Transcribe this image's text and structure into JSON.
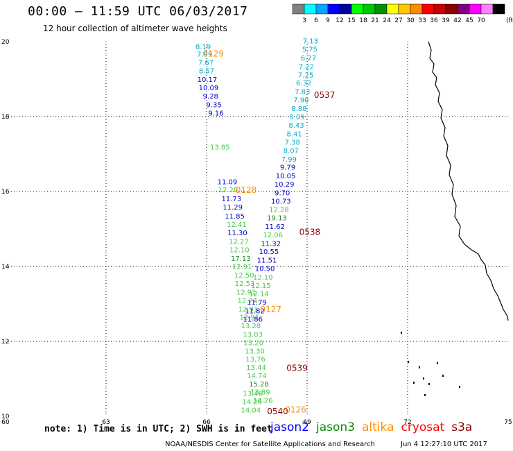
{
  "header": {
    "title": "00:00 – 11:59 UTC 06/03/2017",
    "subtitle": "12 hour collection of altimeter wave heights"
  },
  "colorbar": {
    "unit": "(ft)",
    "colors": [
      "#808080",
      "#00ffff",
      "#00a8ff",
      "#0000ff",
      "#00009c",
      "#00ff00",
      "#00c800",
      "#009000",
      "#ffff00",
      "#ffc800",
      "#ff8c00",
      "#ff0000",
      "#c80000",
      "#8b0000",
      "#800080",
      "#ff00ff",
      "#ff80ff",
      "#000000"
    ],
    "labels": [
      "3",
      "6",
      "9",
      "12",
      "15",
      "18",
      "21",
      "24",
      "27",
      "30",
      "33",
      "36",
      "39",
      "42",
      "45",
      "70"
    ]
  },
  "axes": {
    "lon_labels": [
      "60",
      "63",
      "66",
      "69",
      "72",
      "75"
    ],
    "lat_labels": [
      "20",
      "18",
      "16",
      "14",
      "12",
      "10"
    ]
  },
  "observations": [
    {
      "v": "8.19",
      "c": "#00aacc",
      "lon": 65.9,
      "lat": 19.8
    },
    {
      "v": "7.99",
      "c": "#00aacc",
      "lon": 65.94,
      "lat": 19.6
    },
    {
      "v": "7.67",
      "c": "#00aacc",
      "lon": 65.98,
      "lat": 19.38
    },
    {
      "v": "8.57",
      "c": "#00aacc",
      "lon": 66.0,
      "lat": 19.16
    },
    {
      "v": "10.17",
      "c": "#0000cc",
      "lon": 66.02,
      "lat": 18.93
    },
    {
      "v": "10.09",
      "c": "#0000cc",
      "lon": 66.06,
      "lat": 18.7
    },
    {
      "v": "9.28",
      "c": "#0000cc",
      "lon": 66.12,
      "lat": 18.48
    },
    {
      "v": "9.35",
      "c": "#0000cc",
      "lon": 66.22,
      "lat": 18.25
    },
    {
      "v": "9.16",
      "c": "#0000cc",
      "lon": 66.28,
      "lat": 18.03
    },
    {
      "v": "13.85",
      "c": "#44cc44",
      "lon": 66.4,
      "lat": 17.12
    },
    {
      "v": "11.09",
      "c": "#0000cc",
      "lon": 66.62,
      "lat": 16.19
    },
    {
      "v": "12.20",
      "c": "#44cc44",
      "lon": 66.64,
      "lat": 15.98
    },
    {
      "v": "11.73",
      "c": "#0000cc",
      "lon": 66.74,
      "lat": 15.74
    },
    {
      "v": "11.29",
      "c": "#0000cc",
      "lon": 66.78,
      "lat": 15.52
    },
    {
      "v": "11.85",
      "c": "#0000cc",
      "lon": 66.84,
      "lat": 15.28
    },
    {
      "v": "12.41",
      "c": "#44cc44",
      "lon": 66.9,
      "lat": 15.06
    },
    {
      "v": "11.30",
      "c": "#0000cc",
      "lon": 66.92,
      "lat": 14.83
    },
    {
      "v": "12.27",
      "c": "#44cc44",
      "lon": 66.96,
      "lat": 14.6
    },
    {
      "v": "12.10",
      "c": "#44cc44",
      "lon": 66.98,
      "lat": 14.38
    },
    {
      "v": "17.13",
      "c": "#228822",
      "lon": 67.02,
      "lat": 14.15
    },
    {
      "v": "12.91",
      "c": "#44cc44",
      "lon": 67.06,
      "lat": 13.93
    },
    {
      "v": "12.50",
      "c": "#44cc44",
      "lon": 67.12,
      "lat": 13.7
    },
    {
      "v": "12.53",
      "c": "#44cc44",
      "lon": 67.14,
      "lat": 13.48
    },
    {
      "v": "12.91",
      "c": "#44cc44",
      "lon": 67.18,
      "lat": 13.25
    },
    {
      "v": "12.74",
      "c": "#44cc44",
      "lon": 67.22,
      "lat": 13.03
    },
    {
      "v": "12.91",
      "c": "#44cc44",
      "lon": 67.24,
      "lat": 12.8
    },
    {
      "v": "12.91",
      "c": "#44cc44",
      "lon": 67.28,
      "lat": 12.58
    },
    {
      "v": "13.28",
      "c": "#44cc44",
      "lon": 67.32,
      "lat": 12.35
    },
    {
      "v": "13.03",
      "c": "#44cc44",
      "lon": 67.38,
      "lat": 12.12
    },
    {
      "v": "13.20",
      "c": "#44cc44",
      "lon": 67.4,
      "lat": 11.9
    },
    {
      "v": "13.30",
      "c": "#44cc44",
      "lon": 67.44,
      "lat": 11.68
    },
    {
      "v": "13.76",
      "c": "#44cc44",
      "lon": 67.46,
      "lat": 11.46
    },
    {
      "v": "13.44",
      "c": "#44cc44",
      "lon": 67.48,
      "lat": 11.24
    },
    {
      "v": "14.74",
      "c": "#44cc44",
      "lon": 67.5,
      "lat": 11.02
    },
    {
      "v": "15.28",
      "c": "#228822",
      "lon": 67.56,
      "lat": 10.8
    },
    {
      "v": "13.89",
      "c": "#44cc44",
      "lon": 67.6,
      "lat": 10.58
    },
    {
      "v": "13.46",
      "c": "#44cc44",
      "lon": 67.38,
      "lat": 10.55
    },
    {
      "v": "14.26",
      "c": "#44cc44",
      "lon": 67.68,
      "lat": 10.36
    },
    {
      "v": "14.26",
      "c": "#44cc44",
      "lon": 67.36,
      "lat": 10.32
    },
    {
      "v": "14.04",
      "c": "#44cc44",
      "lon": 67.32,
      "lat": 10.1
    },
    {
      "v": "7.13",
      "c": "#00aacc",
      "lon": 69.1,
      "lat": 19.95
    },
    {
      "v": "5.75",
      "c": "#00aacc",
      "lon": 69.08,
      "lat": 19.73
    },
    {
      "v": "6.27",
      "c": "#00aacc",
      "lon": 69.04,
      "lat": 19.5
    },
    {
      "v": "7.22",
      "c": "#00aacc",
      "lon": 68.98,
      "lat": 19.27
    },
    {
      "v": "7.25",
      "c": "#00aacc",
      "lon": 68.96,
      "lat": 19.05
    },
    {
      "v": "6.32",
      "c": "#00aacc",
      "lon": 68.9,
      "lat": 18.83
    },
    {
      "v": "7.83",
      "c": "#00aacc",
      "lon": 68.86,
      "lat": 18.6
    },
    {
      "v": "7.90",
      "c": "#00aacc",
      "lon": 68.82,
      "lat": 18.38
    },
    {
      "v": "8.88",
      "c": "#00aacc",
      "lon": 68.76,
      "lat": 18.15
    },
    {
      "v": "8.09",
      "c": "#00aacc",
      "lon": 68.7,
      "lat": 17.93
    },
    {
      "v": "8.43",
      "c": "#00aacc",
      "lon": 68.68,
      "lat": 17.7
    },
    {
      "v": "8.41",
      "c": "#00aacc",
      "lon": 68.62,
      "lat": 17.47
    },
    {
      "v": "7.38",
      "c": "#00aacc",
      "lon": 68.56,
      "lat": 17.25
    },
    {
      "v": "8.07",
      "c": "#00aacc",
      "lon": 68.52,
      "lat": 17.03
    },
    {
      "v": "7.99",
      "c": "#00aacc",
      "lon": 68.46,
      "lat": 16.8
    },
    {
      "v": "9.79",
      "c": "#0000cc",
      "lon": 68.42,
      "lat": 16.58
    },
    {
      "v": "10.05",
      "c": "#0000cc",
      "lon": 68.36,
      "lat": 16.35
    },
    {
      "v": "10.29",
      "c": "#0000cc",
      "lon": 68.32,
      "lat": 16.13
    },
    {
      "v": "9.70",
      "c": "#0000cc",
      "lon": 68.26,
      "lat": 15.9
    },
    {
      "v": "10.73",
      "c": "#0000cc",
      "lon": 68.22,
      "lat": 15.68
    },
    {
      "v": "12.28",
      "c": "#44cc44",
      "lon": 68.16,
      "lat": 15.45
    },
    {
      "v": "19.13",
      "c": "#228822",
      "lon": 68.1,
      "lat": 15.23
    },
    {
      "v": "11.62",
      "c": "#0000cc",
      "lon": 68.04,
      "lat": 15.0
    },
    {
      "v": "12.06",
      "c": "#44cc44",
      "lon": 67.98,
      "lat": 14.78
    },
    {
      "v": "11.32",
      "c": "#0000cc",
      "lon": 67.92,
      "lat": 14.55
    },
    {
      "v": "10.55",
      "c": "#0000cc",
      "lon": 67.86,
      "lat": 14.33
    },
    {
      "v": "11.51",
      "c": "#0000cc",
      "lon": 67.8,
      "lat": 14.1
    },
    {
      "v": "10.50",
      "c": "#0000cc",
      "lon": 67.74,
      "lat": 13.88
    },
    {
      "v": "12.10",
      "c": "#44cc44",
      "lon": 67.68,
      "lat": 13.65
    },
    {
      "v": "12.15",
      "c": "#44cc44",
      "lon": 67.62,
      "lat": 13.43
    },
    {
      "v": "12.14",
      "c": "#44cc44",
      "lon": 67.56,
      "lat": 13.2
    },
    {
      "v": "11.79",
      "c": "#0000cc",
      "lon": 67.5,
      "lat": 12.98
    },
    {
      "v": "11.82",
      "c": "#0000cc",
      "lon": 67.44,
      "lat": 12.75
    },
    {
      "v": "11.86",
      "c": "#0000cc",
      "lon": 67.38,
      "lat": 12.53
    }
  ],
  "passes": [
    {
      "label": "0129",
      "c": "#ff8c00",
      "lon": 66.2,
      "lat": 19.6
    },
    {
      "label": "0537",
      "c": "#8b0000",
      "lon": 69.52,
      "lat": 18.5
    },
    {
      "label": "0128",
      "c": "#ff8c00",
      "lon": 67.18,
      "lat": 15.96
    },
    {
      "label": "0538",
      "c": "#8b0000",
      "lon": 69.08,
      "lat": 14.84
    },
    {
      "label": "0127",
      "c": "#ff8c00",
      "lon": 67.92,
      "lat": 12.78
    },
    {
      "label": "0539",
      "c": "#8b0000",
      "lon": 68.7,
      "lat": 11.21
    },
    {
      "label": "0540",
      "c": "#8b0000",
      "lon": 68.12,
      "lat": 10.06
    },
    {
      "label": "0126",
      "c": "#ff8c00",
      "lon": 68.66,
      "lat": 10.1
    }
  ],
  "footer": {
    "note": "note: 1) Time is in UTC; 2) SWH is in feet",
    "satellites": [
      {
        "name": "jason2",
        "color": "#0000ff"
      },
      {
        "name": "jason3",
        "color": "#009000"
      },
      {
        "name": "altika",
        "color": "#ff8c00"
      },
      {
        "name": "cryosat",
        "color": "#ff0000"
      },
      {
        "name": "s3a",
        "color": "#8b0000"
      }
    ],
    "credit": "NOAA/NESDIS Center for Satellite Applications and Research",
    "timestamp": "Jun  4 12:27:10 UTC 2017"
  }
}
